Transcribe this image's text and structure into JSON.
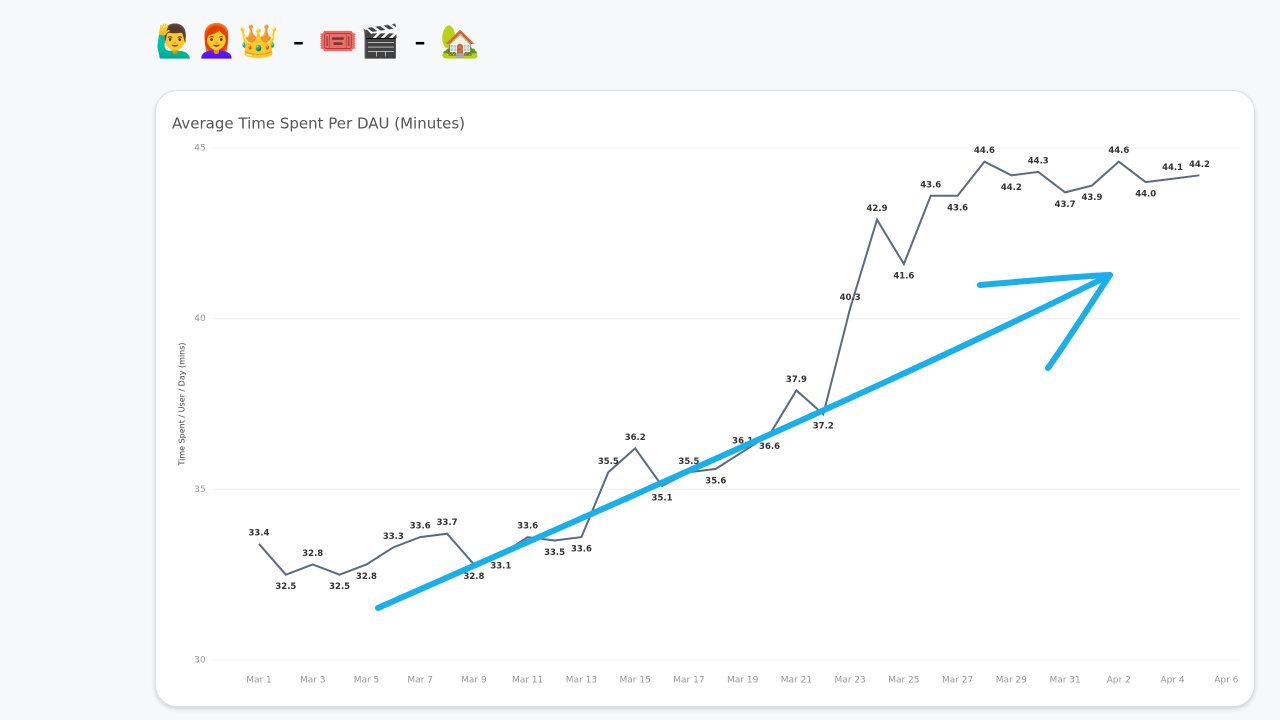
{
  "header": {
    "emoji": "🙋‍♂️👩‍🦰👑 - 🎟️🎬 - 🏡"
  },
  "chart_data": {
    "type": "line",
    "title": "Average Time Spent Per DAU (Minutes)",
    "y_label": "Time Spent / User / Day (mins)",
    "categories": [
      "Mar 1",
      null,
      "Mar 3",
      null,
      "Mar 5",
      null,
      "Mar 7",
      null,
      "Mar 9",
      null,
      "Mar 11",
      null,
      "Mar 13",
      null,
      "Mar 15",
      null,
      "Mar 17",
      null,
      "Mar 19",
      null,
      "Mar 21",
      null,
      "Mar 23",
      null,
      "Mar 25",
      null,
      "Mar 27",
      null,
      "Mar 29",
      null,
      "Mar 31",
      null,
      "Apr 2",
      null,
      "Apr 4",
      null,
      "Apr 6"
    ],
    "values": [
      33.4,
      32.5,
      32.8,
      32.5,
      32.8,
      33.3,
      33.6,
      33.7,
      32.8,
      33.1,
      33.6,
      33.5,
      33.6,
      35.5,
      36.2,
      35.1,
      35.5,
      35.6,
      36.1,
      36.6,
      37.9,
      37.2,
      40.3,
      42.9,
      41.6,
      43.6,
      43.6,
      44.6,
      44.2,
      44.3,
      43.7,
      43.9,
      44.6,
      44.0,
      44.1,
      44.2,
      null
    ],
    "value_labels": [
      "33.4",
      "32.5",
      "32.8",
      "32.5",
      "32.8",
      "33.3",
      "33.6",
      "33.7",
      "32.8",
      "33.1",
      "33.6",
      "33.5",
      "33.6",
      "35.5",
      "36.2",
      "35.1",
      "35.5",
      "35.6",
      "36.1",
      "36.6",
      "37.9",
      "37.2",
      "40.3",
      "42.9",
      "41.6",
      "43.6",
      "43.6",
      "44.6",
      "44.2",
      "44.3",
      "43.7",
      "43.9",
      "44.6",
      "44.0",
      "44.1",
      "44.2",
      null
    ],
    "color": "#5b6b7f",
    "ylim": [
      30,
      45
    ],
    "yticks": [
      30,
      35,
      40,
      45
    ],
    "grid": true
  }
}
